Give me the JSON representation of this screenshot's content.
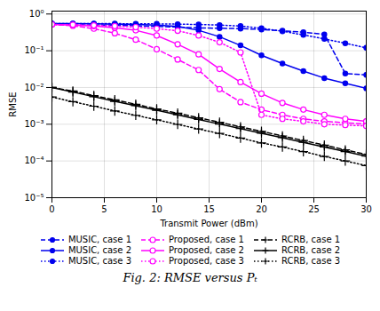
{
  "chart_data": {
    "type": "line",
    "xlabel": "Transmit Power (dBm)",
    "ylabel": "RMSE",
    "caption": "Fig. 2: RMSE versus Pₜ",
    "x": [
      0,
      2,
      4,
      6,
      8,
      10,
      12,
      14,
      16,
      18,
      20,
      22,
      24,
      26,
      28,
      30
    ],
    "series": [
      {
        "name": "MUSIC, case 1",
        "color": "#0000EE",
        "marker": "circle",
        "line_style": "dashed",
        "values": [
          0.52,
          0.51,
          0.5,
          0.49,
          0.48,
          0.46,
          0.44,
          0.42,
          0.41,
          0.4,
          0.38,
          0.35,
          0.32,
          0.28,
          0.024,
          0.022
        ]
      },
      {
        "name": "Proposed, case 1",
        "color": "#FF00FF",
        "marker": "open_circle",
        "line_style": "dashed",
        "values": [
          0.52,
          0.48,
          0.4,
          0.3,
          0.2,
          0.11,
          0.058,
          0.03,
          0.009,
          0.004,
          0.0025,
          0.0018,
          0.0014,
          0.0012,
          0.0011,
          0.001
        ]
      },
      {
        "name": "RCRB, case 1",
        "color": "#000000",
        "marker": "plus",
        "line_style": "dashed",
        "values": [
          0.01,
          0.008,
          0.006,
          0.0046,
          0.0035,
          0.0026,
          0.002,
          0.0015,
          0.00113,
          0.00085,
          0.00064,
          0.00048,
          0.00036,
          0.00027,
          0.0002,
          0.00015
        ]
      },
      {
        "name": "MUSIC, case 2",
        "color": "#0000EE",
        "marker": "circle",
        "line_style": "solid",
        "values": [
          0.55,
          0.55,
          0.54,
          0.53,
          0.52,
          0.5,
          0.46,
          0.36,
          0.24,
          0.14,
          0.075,
          0.045,
          0.028,
          0.018,
          0.013,
          0.0095
        ]
      },
      {
        "name": "Proposed, case 2",
        "color": "#FF00FF",
        "marker": "open_circle",
        "line_style": "solid",
        "values": [
          0.52,
          0.5,
          0.47,
          0.42,
          0.36,
          0.26,
          0.15,
          0.08,
          0.032,
          0.014,
          0.0068,
          0.0038,
          0.0025,
          0.0018,
          0.0014,
          0.0012
        ]
      },
      {
        "name": "RCRB, case 2",
        "color": "#000000",
        "marker": "plus",
        "line_style": "solid",
        "values": [
          0.01,
          0.0075,
          0.0056,
          0.0042,
          0.0032,
          0.0024,
          0.0018,
          0.00135,
          0.00101,
          0.00076,
          0.00057,
          0.00043,
          0.00032,
          0.00024,
          0.00018,
          0.000135
        ]
      },
      {
        "name": "MUSIC, case 3",
        "color": "#0000EE",
        "marker": "circle",
        "line_style": "dotted",
        "values": [
          0.55,
          0.55,
          0.55,
          0.55,
          0.54,
          0.54,
          0.53,
          0.52,
          0.5,
          0.47,
          0.41,
          0.34,
          0.27,
          0.21,
          0.16,
          0.12
        ]
      },
      {
        "name": "Proposed, case 3",
        "color": "#FF00FF",
        "marker": "open_circle",
        "line_style": "dotted",
        "values": [
          0.52,
          0.51,
          0.49,
          0.47,
          0.44,
          0.4,
          0.35,
          0.26,
          0.17,
          0.09,
          0.0018,
          0.0014,
          0.0012,
          0.001,
          0.00095,
          0.0009
        ]
      },
      {
        "name": "RCRB, case 3",
        "color": "#000000",
        "marker": "plus",
        "line_style": "dotted",
        "values": [
          0.0055,
          0.0041,
          0.0031,
          0.0023,
          0.00175,
          0.00132,
          0.00099,
          0.00074,
          0.00056,
          0.00042,
          0.00031,
          0.00024,
          0.00018,
          0.000133,
          0.0001,
          7.5e-05
        ]
      }
    ],
    "log": "y",
    "xlim": [
      0,
      30
    ],
    "xticks": [
      0,
      5,
      10,
      15,
      20,
      25,
      30
    ],
    "ylim": [
      1e-05,
      1.2
    ],
    "yticks": [
      {
        "value": 1e-05,
        "label": "10⁻⁵"
      },
      {
        "value": 0.0001,
        "label": "10⁻⁴"
      },
      {
        "value": 0.001,
        "label": "10⁻³"
      },
      {
        "value": 0.01,
        "label": "10⁻²"
      },
      {
        "value": 0.1,
        "label": "10⁻¹"
      },
      {
        "value": 1,
        "label": "10⁰"
      }
    ],
    "grid": true
  }
}
